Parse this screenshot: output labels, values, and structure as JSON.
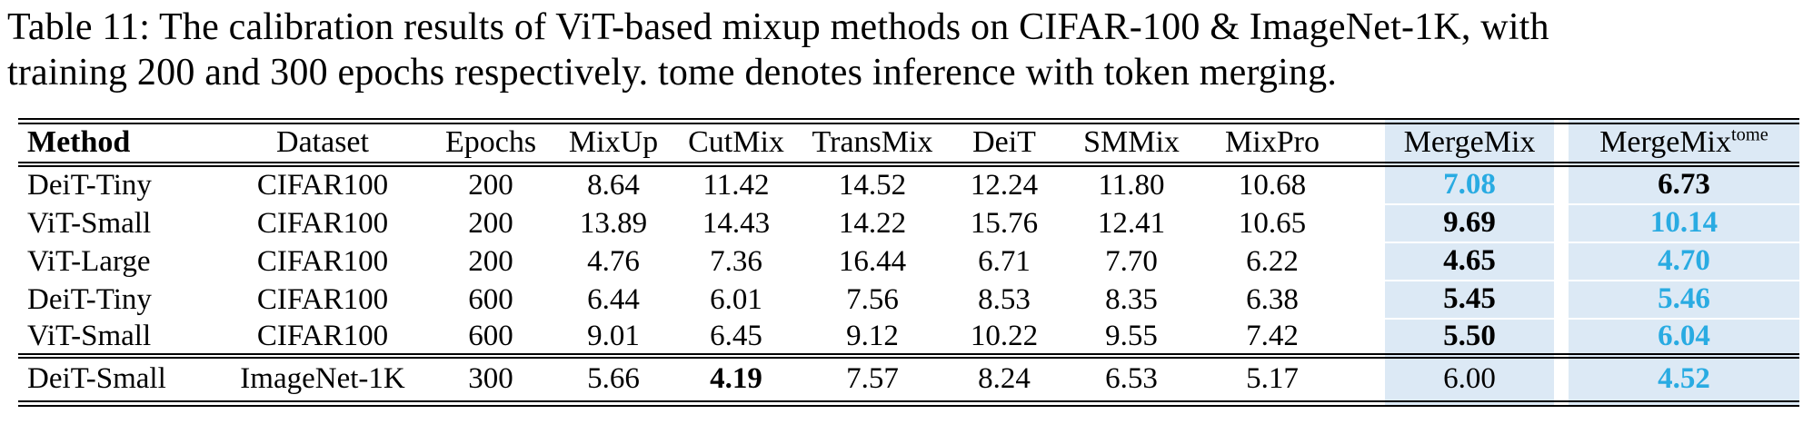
{
  "caption": {
    "lines": [
      "Table 11: The calibration results of ViT-based mixup methods on CIFAR-100 & ImageNet-1K, with",
      "training 200 and 300 epochs respectively. tome denotes inference with token merging."
    ]
  },
  "colors": {
    "highlight_bg": "#dce9f5",
    "accent_text": "#29abe2"
  },
  "table": {
    "columns": [
      {
        "key": "method",
        "label": "Method",
        "bold": true,
        "align": "left"
      },
      {
        "key": "dataset",
        "label": "Dataset"
      },
      {
        "key": "epochs",
        "label": "Epochs"
      },
      {
        "key": "mixup",
        "label": "MixUp"
      },
      {
        "key": "cutmix",
        "label": "CutMix"
      },
      {
        "key": "transmix",
        "label": "TransMix"
      },
      {
        "key": "deit",
        "label": "DeiT"
      },
      {
        "key": "smmix",
        "label": "SMMix"
      },
      {
        "key": "mixpro",
        "label": "MixPro"
      },
      {
        "key": "mergemix",
        "label": "MergeMix",
        "hl": true
      },
      {
        "key": "mergemix_tome",
        "label": "MergeMix",
        "sup": "tome",
        "hl": true
      }
    ],
    "groups": [
      {
        "name": "cifar100",
        "rows": [
          {
            "cells": [
              {
                "t": "DeiT-Tiny"
              },
              {
                "t": "CIFAR100"
              },
              {
                "t": "200"
              },
              {
                "t": "8.64"
              },
              {
                "t": "11.42"
              },
              {
                "t": "14.52"
              },
              {
                "t": "12.24"
              },
              {
                "t": "11.80"
              },
              {
                "t": "10.68"
              },
              {
                "t": "7.08",
                "bold": true,
                "accent": true
              },
              {
                "t": "6.73",
                "bold": true
              }
            ]
          },
          {
            "cells": [
              {
                "t": "ViT-Small"
              },
              {
                "t": "CIFAR100"
              },
              {
                "t": "200"
              },
              {
                "t": "13.89"
              },
              {
                "t": "14.43"
              },
              {
                "t": "14.22"
              },
              {
                "t": "15.76"
              },
              {
                "t": "12.41"
              },
              {
                "t": "10.65"
              },
              {
                "t": "9.69",
                "bold": true
              },
              {
                "t": "10.14",
                "bold": true,
                "accent": true
              }
            ]
          },
          {
            "cells": [
              {
                "t": "ViT-Large"
              },
              {
                "t": "CIFAR100"
              },
              {
                "t": "200"
              },
              {
                "t": "4.76"
              },
              {
                "t": "7.36"
              },
              {
                "t": "16.44"
              },
              {
                "t": "6.71"
              },
              {
                "t": "7.70"
              },
              {
                "t": "6.22"
              },
              {
                "t": "4.65",
                "bold": true
              },
              {
                "t": "4.70",
                "bold": true,
                "accent": true
              }
            ]
          },
          {
            "cells": [
              {
                "t": "DeiT-Tiny"
              },
              {
                "t": "CIFAR100"
              },
              {
                "t": "600"
              },
              {
                "t": "6.44"
              },
              {
                "t": "6.01"
              },
              {
                "t": "7.56"
              },
              {
                "t": "8.53"
              },
              {
                "t": "8.35"
              },
              {
                "t": "6.38"
              },
              {
                "t": "5.45",
                "bold": true
              },
              {
                "t": "5.46",
                "bold": true,
                "accent": true
              }
            ]
          },
          {
            "cells": [
              {
                "t": "ViT-Small"
              },
              {
                "t": "CIFAR100"
              },
              {
                "t": "600"
              },
              {
                "t": "9.01"
              },
              {
                "t": "6.45"
              },
              {
                "t": "9.12"
              },
              {
                "t": "10.22"
              },
              {
                "t": "9.55"
              },
              {
                "t": "7.42"
              },
              {
                "t": "5.50",
                "bold": true
              },
              {
                "t": "6.04",
                "bold": true,
                "accent": true
              }
            ]
          }
        ]
      },
      {
        "name": "imagenet",
        "rows": [
          {
            "cells": [
              {
                "t": "DeiT-Small"
              },
              {
                "t": "ImageNet-1K"
              },
              {
                "t": "300"
              },
              {
                "t": "5.66"
              },
              {
                "t": "4.19",
                "bold": true
              },
              {
                "t": "7.57"
              },
              {
                "t": "8.24"
              },
              {
                "t": "6.53"
              },
              {
                "t": "5.17"
              },
              {
                "t": "6.00"
              },
              {
                "t": "4.52",
                "bold": true,
                "accent": true
              }
            ]
          }
        ]
      }
    ]
  }
}
